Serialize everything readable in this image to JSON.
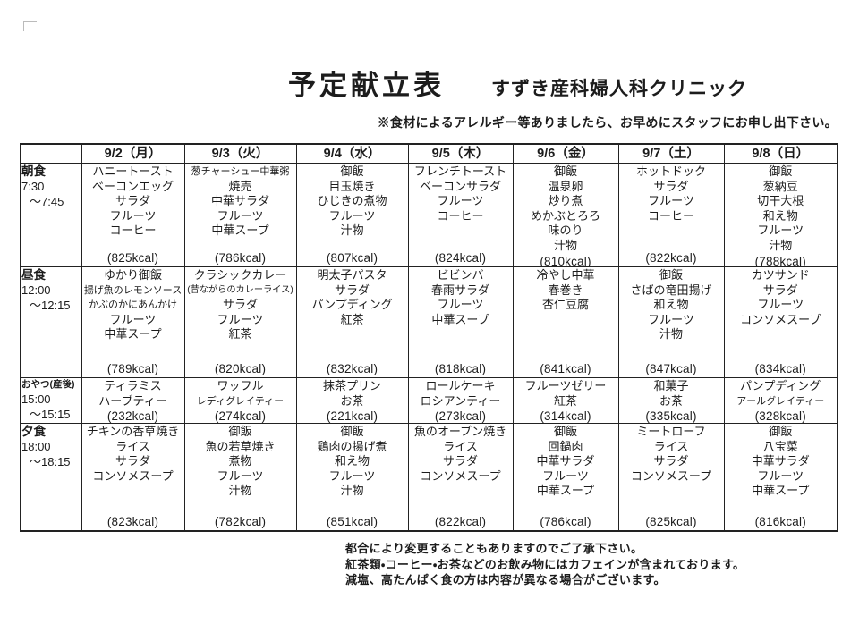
{
  "header": {
    "title": "予定献立表",
    "clinic": "すずき産科婦人科クリニック",
    "allergy_note": "※食材によるアレルギー等ありましたら、お早めにスタッフにお申し出下さい。"
  },
  "table": {
    "days": [
      "9/2（月）",
      "9/3（火）",
      "9/4（水）",
      "9/5（木）",
      "9/6（金）",
      "9/7（土）",
      "9/8（日）"
    ],
    "rows": [
      {
        "meal": "朝食",
        "time1": "7:30",
        "time2": "～7:45",
        "cells": [
          {
            "items": [
              "ハニートースト",
              "ベーコンエッグ",
              "サラダ",
              "フルーツ",
              "コーヒー"
            ],
            "kcal": "(825kcal)"
          },
          {
            "items": [
              "葱チャーシュー中華粥",
              "焼売",
              "中華サラダ",
              "フルーツ",
              "中華スープ"
            ],
            "kcal": "(786kcal)"
          },
          {
            "items": [
              "御飯",
              "目玉焼き",
              "ひじきの煮物",
              "フルーツ",
              "汁物"
            ],
            "kcal": "(807kcal)"
          },
          {
            "items": [
              "フレンチトースト",
              "ベーコンサラダ",
              "フルーツ",
              "コーヒー"
            ],
            "kcal": "(824kcal)"
          },
          {
            "items": [
              "御飯",
              "温泉卵",
              "炒り煮",
              "めかぶとろろ",
              "味のり",
              "汁物"
            ],
            "kcal": "(810kcal)"
          },
          {
            "items": [
              "ホットドック",
              "サラダ",
              "フルーツ",
              "コーヒー"
            ],
            "kcal": "(822kcal)"
          },
          {
            "items": [
              "御飯",
              "葱納豆",
              "切干大根",
              "和え物",
              "フルーツ",
              "汁物"
            ],
            "kcal": "(788kcal)"
          }
        ]
      },
      {
        "meal": "昼食",
        "time1": "12:00",
        "time2": "～12:15",
        "cells": [
          {
            "items": [
              "ゆかり御飯",
              "揚げ魚のレモンソース",
              "かぶのかにあんかけ",
              "フルーツ",
              "中華スープ"
            ],
            "kcal": "(789kcal)"
          },
          {
            "items": [
              "クラシックカレー",
              "(昔ながらのカレーライス)",
              "サラダ",
              "フルーツ",
              "紅茶"
            ],
            "kcal": "(820kcal)"
          },
          {
            "items": [
              "明太子パスタ",
              "サラダ",
              "パンプディング",
              "紅茶"
            ],
            "kcal": "(832kcal)"
          },
          {
            "items": [
              "ビビンバ",
              "春雨サラダ",
              "フルーツ",
              "中華スープ"
            ],
            "kcal": "(818kcal)"
          },
          {
            "items": [
              "冷やし中華",
              "春巻き",
              "杏仁豆腐"
            ],
            "kcal": "(841kcal)"
          },
          {
            "items": [
              "御飯",
              "さばの竜田揚げ",
              "和え物",
              "フルーツ",
              "汁物"
            ],
            "kcal": "(847kcal)"
          },
          {
            "items": [
              "カツサンド",
              "サラダ",
              "フルーツ",
              "コンソメスープ"
            ],
            "kcal": "(834kcal)"
          }
        ]
      },
      {
        "meal": "おやつ(産後)",
        "time1": "15:00",
        "time2": "～15:15",
        "cells": [
          {
            "items": [
              "ティラミス",
              "ハーブティー"
            ],
            "kcal": "(232kcal)"
          },
          {
            "items": [
              "ワッフル",
              "レディグレイティー"
            ],
            "kcal": "(274kcal)"
          },
          {
            "items": [
              "抹茶プリン",
              "お茶"
            ],
            "kcal": "(221kcal)"
          },
          {
            "items": [
              "ロールケーキ",
              "ロシアンティー"
            ],
            "kcal": "(273kcal)"
          },
          {
            "items": [
              "フルーツゼリー",
              "紅茶"
            ],
            "kcal": "(314kcal)"
          },
          {
            "items": [
              "和菓子",
              "お茶"
            ],
            "kcal": "(335kcal)"
          },
          {
            "items": [
              "パンプディング",
              "アールグレイティー"
            ],
            "kcal": "(328kcal)"
          }
        ]
      },
      {
        "meal": "夕食",
        "time1": "18:00",
        "time2": "～18:15",
        "cells": [
          {
            "items": [
              "チキンの香草焼き",
              "ライス",
              "サラダ",
              "コンソメスープ"
            ],
            "kcal": "(823kcal)"
          },
          {
            "items": [
              "御飯",
              "魚の若草焼き",
              "煮物",
              "フルーツ",
              "汁物"
            ],
            "kcal": "(782kcal)"
          },
          {
            "items": [
              "御飯",
              "鶏肉の揚げ煮",
              "和え物",
              "フルーツ",
              "汁物"
            ],
            "kcal": "(851kcal)"
          },
          {
            "items": [
              "魚のオーブン焼き",
              "ライス",
              "サラダ",
              "コンソメスープ"
            ],
            "kcal": "(822kcal)"
          },
          {
            "items": [
              "御飯",
              "回鍋肉",
              "中華サラダ",
              "フルーツ",
              "中華スープ"
            ],
            "kcal": "(786kcal)"
          },
          {
            "items": [
              "ミートローフ",
              "ライス",
              "サラダ",
              "コンソメスープ"
            ],
            "kcal": "(825kcal)"
          },
          {
            "items": [
              "御飯",
              "八宝菜",
              "中華サラダ",
              "フルーツ",
              "中華スープ"
            ],
            "kcal": "(816kcal)"
          }
        ]
      }
    ]
  },
  "footer": {
    "notes": [
      "都合により変更することもありますのでご了承下さい。",
      "紅茶類・コーヒー・お茶などのお飲み物にはカフェインが含まれております。",
      "減塩、高たんぱく食の方は内容が異なる場合がございます。"
    ]
  }
}
